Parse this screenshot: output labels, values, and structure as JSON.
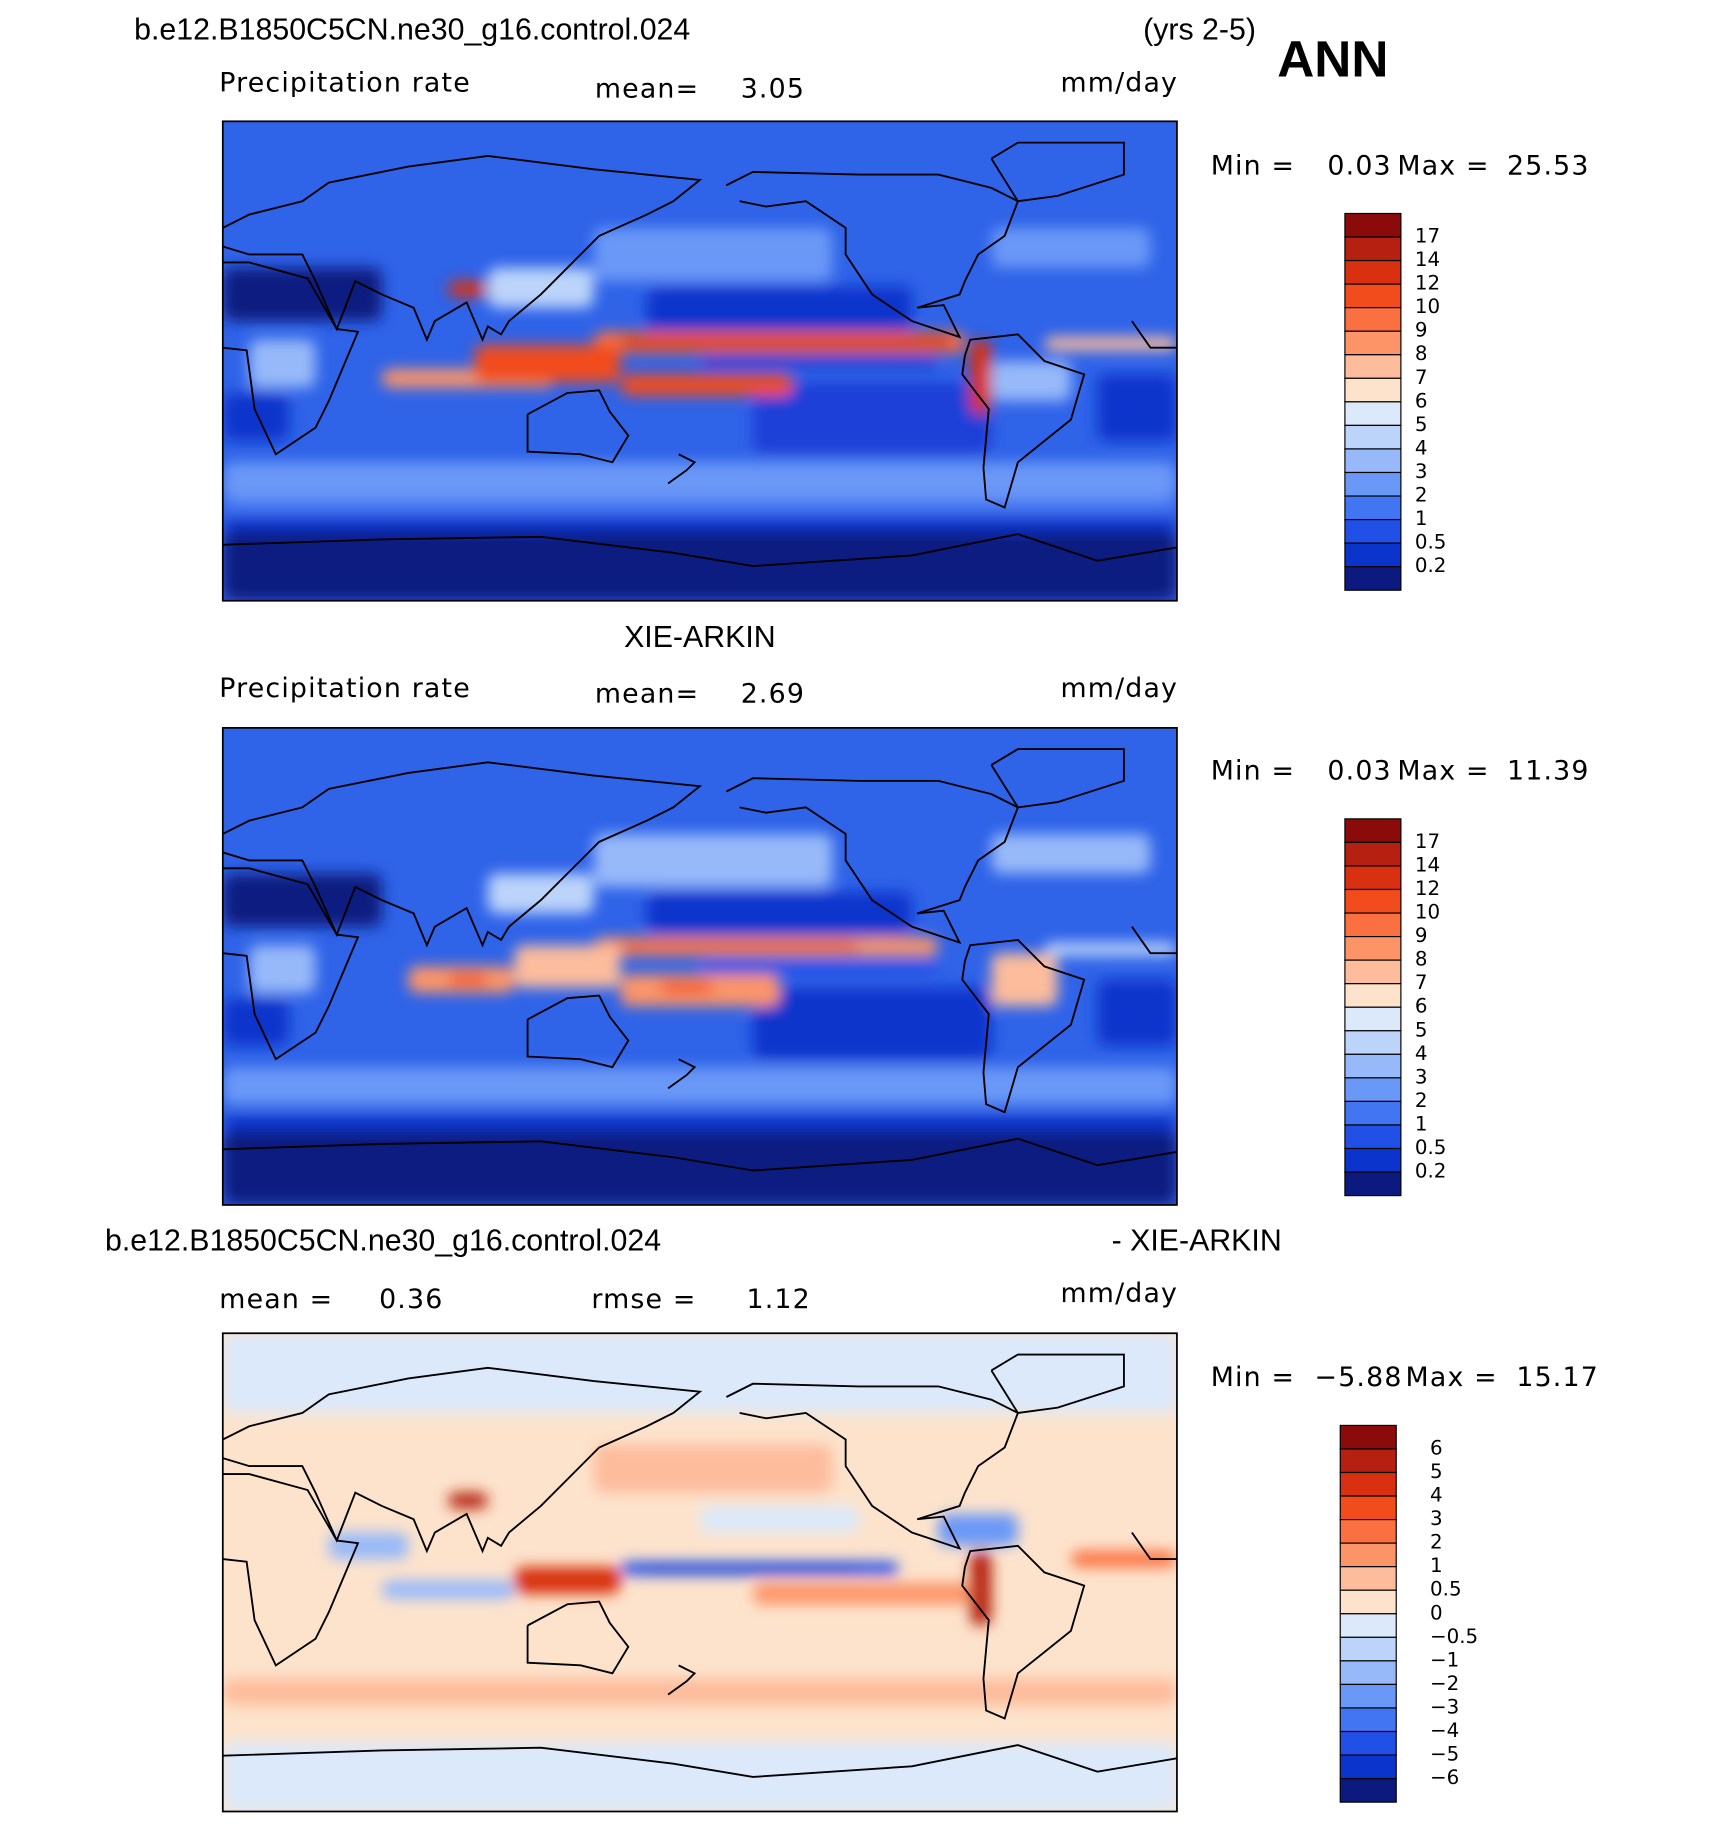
{
  "panels": [
    {
      "title": "b.e12.B1850C5CN.ne30_g16.control.024",
      "period": "(yrs 2-5)",
      "season": "ANN",
      "variable": "Precipitation rate",
      "mean_label": "mean=",
      "mean": "3.05",
      "units": "mm/day",
      "min_label": "Min =",
      "min": "0.03",
      "max_label": "Max =",
      "max": "25.53",
      "colorbar": {
        "labels": [
          "17",
          "14",
          "12",
          "10",
          "9",
          "8",
          "7",
          "6",
          "5",
          "4",
          "3",
          "2",
          "1",
          "0.5",
          "0.2"
        ],
        "colors": [
          "#8b0a0a",
          "#b52010",
          "#d83010",
          "#f24c1c",
          "#fb7040",
          "#fc9468",
          "#fdbc9c",
          "#fde3cc",
          "#dbe9fa",
          "#bcd4fa",
          "#97b9f9",
          "#6a98f7",
          "#4275f2",
          "#2050e6",
          "#0a34cc",
          "#0c1a80"
        ]
      }
    },
    {
      "title": "XIE-ARKIN",
      "variable": "Precipitation rate",
      "mean_label": "mean=",
      "mean": "2.69",
      "units": "mm/day",
      "min_label": "Min =",
      "min": "0.03",
      "max_label": "Max =",
      "max": "11.39",
      "colorbar": {
        "labels": [
          "17",
          "14",
          "12",
          "10",
          "9",
          "8",
          "7",
          "6",
          "5",
          "4",
          "3",
          "2",
          "1",
          "0.5",
          "0.2"
        ],
        "colors": [
          "#8b0a0a",
          "#b52010",
          "#d83010",
          "#f24c1c",
          "#fb7040",
          "#fc9468",
          "#fdbc9c",
          "#fde3cc",
          "#dbe9fa",
          "#bcd4fa",
          "#97b9f9",
          "#6a98f7",
          "#4275f2",
          "#2050e6",
          "#0a34cc",
          "#0c1a80"
        ]
      }
    },
    {
      "title": "b.e12.B1850C5CN.ne30_g16.control.024",
      "subtitle": "- XIE-ARKIN",
      "mean_label": "mean =",
      "mean": "0.36",
      "rmse_label": "rmse =",
      "rmse": "1.12",
      "units": "mm/day",
      "min_label": "Min =",
      "min": "−5.88",
      "max_label": "Max =",
      "max": "15.17",
      "colorbar": {
        "labels": [
          "6",
          "5",
          "4",
          "3",
          "2",
          "1",
          "0.5",
          "0",
          "−0.5",
          "−1",
          "−2",
          "−3",
          "−4",
          "−5",
          "−6"
        ],
        "colors": [
          "#8b0a0a",
          "#b52010",
          "#d83010",
          "#f24c1c",
          "#fb7040",
          "#fc9468",
          "#fdbc9c",
          "#fde3cc",
          "#dbe9fa",
          "#bcd4fa",
          "#97b9f9",
          "#6a98f7",
          "#4275f2",
          "#2050e6",
          "#0a34cc",
          "#0c1a80"
        ]
      }
    }
  ]
}
